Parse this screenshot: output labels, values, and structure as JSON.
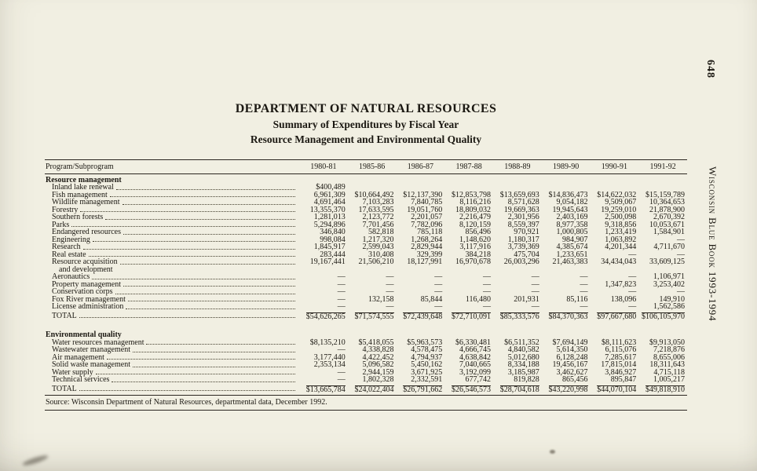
{
  "page": {
    "page_number": "648",
    "side_label": "Wisconsin Blue Book 1993-1994",
    "titles": {
      "line1": "DEPARTMENT OF NATURAL RESOURCES",
      "line2": "Summary of Expenditures by Fiscal Year",
      "line3": "Resource Management and Environmental Quality"
    },
    "source_note": "Source: Wisconsin Department of Natural Resources, departmental data, December 1992."
  },
  "table": {
    "columns": [
      "Program/Subprogram",
      "1980-81",
      "1985-86",
      "1986-87",
      "1987-88",
      "1988-89",
      "1989-90",
      "1990-91",
      "1991-92"
    ],
    "sections": [
      {
        "heading": "Resource management",
        "rows": [
          {
            "label": "Inland lake renewal",
            "values": [
              "$400,489",
              "",
              "",
              "",
              "",
              "",
              "",
              ""
            ]
          },
          {
            "label": "Fish management",
            "values": [
              "6,961,309",
              "$10,664,492",
              "$12,137,390",
              "$12,853,798",
              "$13,659,693",
              "$14,836,473",
              "$14,622,032",
              "$15,159,789"
            ]
          },
          {
            "label": "Wildlife management",
            "values": [
              "4,691,464",
              "7,103,283",
              "7,840,785",
              "8,116,216",
              "8,571,628",
              "9,054,182",
              "9,509,067",
              "10,364,653"
            ]
          },
          {
            "label": "Forestry",
            "values": [
              "13,355,370",
              "17,633,595",
              "19,051,760",
              "18,809,032",
              "19,669,363",
              "19,945,643",
              "19,259,010",
              "21,878,900"
            ]
          },
          {
            "label": "Southern forests",
            "values": [
              "1,281,013",
              "2,123,772",
              "2,201,057",
              "2,216,479",
              "2,301,956",
              "2,403,169",
              "2,500,098",
              "2,670,392"
            ]
          },
          {
            "label": "Parks",
            "values": [
              "5,294,896",
              "7,701,456",
              "7,782,096",
              "8,120,159",
              "8,559,397",
              "8,977,358",
              "9,318,856",
              "10,053,671"
            ]
          },
          {
            "label": "Endangered resources",
            "values": [
              "346,840",
              "582,818",
              "785,118",
              "856,496",
              "970,921",
              "1,000,805",
              "1,233,419",
              "1,584,901"
            ]
          },
          {
            "label": "Engineering",
            "values": [
              "998,084",
              "1,217,320",
              "1,268,264",
              "1,148,620",
              "1,180,317",
              "984,907",
              "1,063,892",
              "—"
            ]
          },
          {
            "label": "Research",
            "values": [
              "1,845,917",
              "2,599,043",
              "2,829,944",
              "3,117,916",
              "3,739,369",
              "4,385,674",
              "4,201,344",
              "4,711,670"
            ]
          },
          {
            "label": "Real estate",
            "values": [
              "283,444",
              "310,408",
              "329,399",
              "384,218",
              "475,704",
              "1,233,651",
              "—",
              "—"
            ]
          },
          {
            "label": "Resource acquisition",
            "label2": "and development",
            "values": [
              "19,167,441",
              "21,506,210",
              "18,127,991",
              "16,970,678",
              "26,003,296",
              "21,463,383",
              "34,434,043",
              "33,609,125"
            ]
          },
          {
            "label": "Aeronautics",
            "values": [
              "—",
              "—",
              "—",
              "—",
              "—",
              "—",
              "—",
              "1,106,971"
            ]
          },
          {
            "label": "Property management",
            "values": [
              "—",
              "—",
              "—",
              "—",
              "—",
              "—",
              "1,347,823",
              "3,253,402"
            ]
          },
          {
            "label": "Conservation corps",
            "values": [
              "—",
              "—",
              "—",
              "—",
              "—",
              "—",
              "—",
              "—"
            ]
          },
          {
            "label": "Fox River management",
            "values": [
              "—",
              "132,158",
              "85,844",
              "116,480",
              "201,931",
              "85,116",
              "138,096",
              "149,910"
            ]
          },
          {
            "label": "License administration",
            "values": [
              "—",
              "—",
              "—",
              "—",
              "—",
              "—",
              "—",
              "1,562,586"
            ]
          }
        ],
        "total": {
          "label": "TOTAL",
          "values": [
            "$54,626,265",
            "$71,574,555",
            "$72,439,648",
            "$72,710,091",
            "$85,333,576",
            "$84,370,363",
            "$97,667,680",
            "$106,105,970"
          ]
        }
      },
      {
        "heading": "Environmental quality",
        "rows": [
          {
            "label": "Water resources management",
            "values": [
              "$8,135,210",
              "$5,418,055",
              "$5,963,573",
              "$6,330,481",
              "$6,511,352",
              "$7,694,149",
              "$8,111,623",
              "$9,913,050"
            ]
          },
          {
            "label": "Wastewater management",
            "values": [
              "—",
              "4,338,828",
              "4,578,475",
              "4,666,745",
              "4,840,582",
              "5,614,350",
              "6,115,076",
              "7,218,876"
            ]
          },
          {
            "label": "Air management",
            "values": [
              "3,177,440",
              "4,422,452",
              "4,794,937",
              "4,638,842",
              "5,012,680",
              "6,128,248",
              "7,285,617",
              "8,655,006"
            ]
          },
          {
            "label": "Solid waste management",
            "values": [
              "2,353,134",
              "5,096,582",
              "5,450,162",
              "7,040,665",
              "8,334,188",
              "19,456,167",
              "17,815,014",
              "18,311,643"
            ]
          },
          {
            "label": "Water supply",
            "values": [
              "—",
              "2,944,159",
              "3,671,925",
              "3,192,099",
              "3,185,987",
              "3,462,627",
              "3,846,927",
              "4,715,118"
            ]
          },
          {
            "label": "Technical services",
            "values": [
              "—",
              "1,802,328",
              "2,332,591",
              "677,742",
              "819,828",
              "865,456",
              "895,847",
              "1,005,217"
            ]
          }
        ],
        "total": {
          "label": "TOTAL",
          "values": [
            "$13,665,784",
            "$24,022,404",
            "$26,791,662",
            "$26,546,573",
            "$28,704,618",
            "$43,220,998",
            "$44,070,104",
            "$49,818,910"
          ]
        }
      }
    ]
  }
}
